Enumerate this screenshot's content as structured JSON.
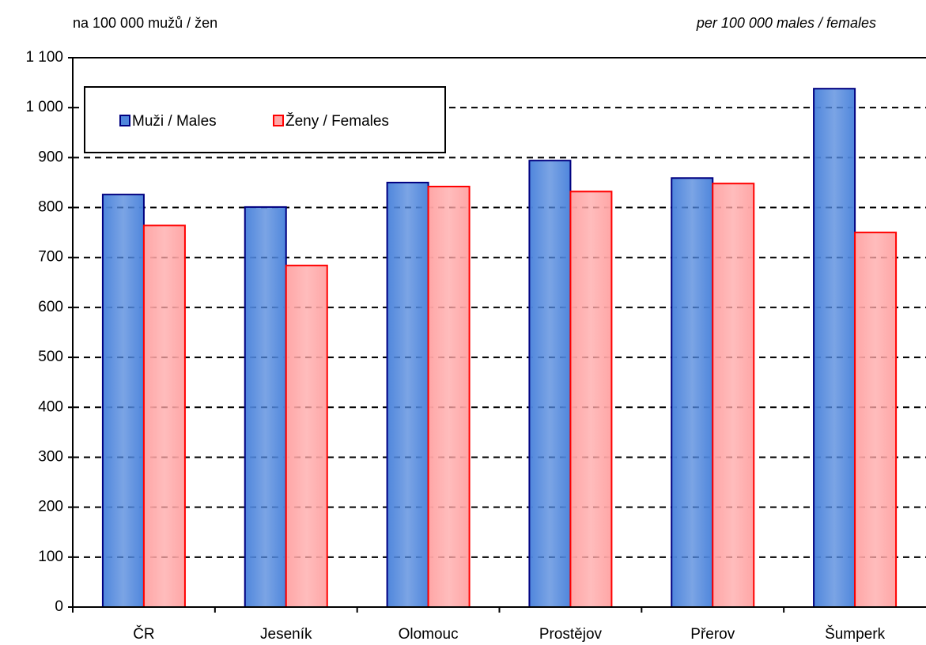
{
  "chart_data": {
    "type": "bar",
    "subtitle": "na 100 000 mužů / žen",
    "subtitle_en": "per 100 000 males / females",
    "categories": [
      "ČR",
      "Jeseník",
      "Olomouc",
      "Prostějov",
      "Přerov",
      "Šumperk"
    ],
    "series": [
      {
        "name": "Muži / Males",
        "color": "#4f86dc",
        "edge_color": "#000080",
        "values": [
          826,
          801,
          850,
          894,
          859,
          1038
        ]
      },
      {
        "name": "Ženy / Females",
        "color": "#ffa6a6",
        "edge_color": "#ff0000",
        "values": [
          764,
          684,
          842,
          832,
          848,
          750
        ]
      }
    ],
    "ylim": [
      0,
      1100
    ],
    "yticks": [
      0,
      100,
      200,
      300,
      400,
      500,
      600,
      700,
      800,
      900,
      {
        "value": 1000,
        "label": "1 000"
      },
      {
        "value": 1100,
        "label": "1 100"
      }
    ],
    "grid": true,
    "legend": "upper left"
  }
}
